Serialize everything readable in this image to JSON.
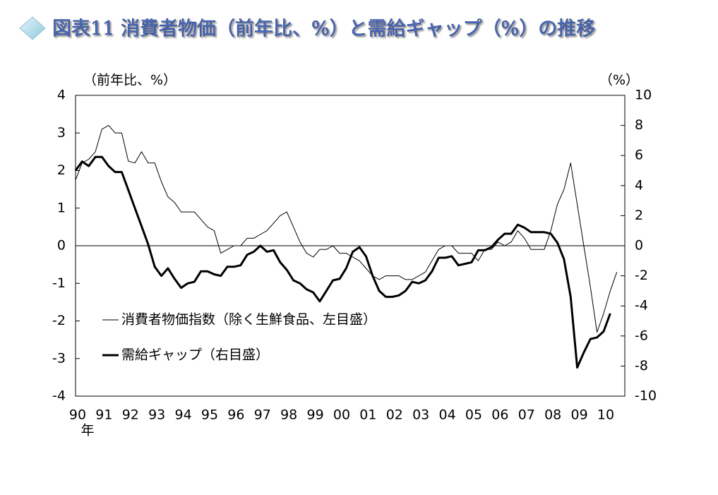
{
  "chart_data": {
    "type": "line",
    "title": "図表11 消費者物価（前年比、%）と需給ギャップ（%）の推移",
    "y_label": "（前年比、%）",
    "y2_label": "（%）",
    "x_annotation": "年",
    "categories": [
      "90",
      null,
      null,
      null,
      "91",
      null,
      null,
      null,
      "92",
      null,
      null,
      null,
      "93",
      null,
      null,
      null,
      "94",
      null,
      null,
      null,
      "95",
      null,
      null,
      null,
      "96",
      null,
      null,
      null,
      "97",
      null,
      null,
      null,
      "98",
      null,
      null,
      null,
      "99",
      null,
      null,
      null,
      "00",
      null,
      null,
      null,
      "01",
      null,
      null,
      null,
      "02",
      null,
      null,
      null,
      "03",
      null,
      null,
      null,
      "04",
      null,
      null,
      null,
      "05",
      null,
      null,
      null,
      "06",
      null,
      null,
      null,
      "07",
      null,
      null,
      null,
      "08",
      null,
      null,
      null,
      "09",
      null,
      null,
      null,
      "10",
      null,
      null
    ],
    "series": [
      {
        "name": "消費者物価指数（除く生鮮食品、左目盛）",
        "color": "#000000",
        "width": 1,
        "axis": "y",
        "values": [
          1.75,
          2.2,
          2.3,
          2.5,
          3.1,
          3.2,
          3.0,
          3.0,
          2.25,
          2.2,
          2.5,
          2.2,
          2.2,
          1.7,
          1.3,
          1.15,
          0.9,
          0.9,
          0.9,
          0.7,
          0.5,
          0.4,
          -0.2,
          -0.1,
          0,
          0,
          0.2,
          0.2,
          0.3,
          0.4,
          0.6,
          0.8,
          0.9,
          0.5,
          0.1,
          -0.2,
          -0.3,
          -0.1,
          -0.1,
          0,
          -0.2,
          -0.2,
          -0.3,
          -0.4,
          -0.6,
          -0.8,
          -0.9,
          -0.8,
          -0.8,
          -0.8,
          -0.9,
          -0.9,
          -0.8,
          -0.7,
          -0.4,
          -0.1,
          0,
          0,
          -0.2,
          -0.2,
          -0.2,
          -0.4,
          -0.1,
          -0.1,
          0.1,
          0,
          0.1,
          0.4,
          0.2,
          -0.1,
          -0.1,
          -0.1,
          0.4,
          1.1,
          1.5,
          2.2,
          1.1,
          0,
          -1.1,
          -2.3,
          -1.8,
          -1.2,
          -0.7
        ]
      },
      {
        "name": "需給ギャップ（右目盛）",
        "color": "#000000",
        "width": 3,
        "axis": "y2",
        "values": [
          5.0,
          5.6,
          5.3,
          5.9,
          5.9,
          5.3,
          4.9,
          4.9,
          3.7,
          2.5,
          1.3,
          0.1,
          -1.4,
          -2.0,
          -1.5,
          -2.2,
          -2.8,
          -2.5,
          -2.4,
          -1.7,
          -1.7,
          -1.9,
          -2.0,
          -1.4,
          -1.4,
          -1.3,
          -0.6,
          -0.4,
          0,
          -0.4,
          -0.3,
          -1.1,
          -1.6,
          -2.3,
          -2.5,
          -2.9,
          -3.1,
          -3.7,
          -3.0,
          -2.3,
          -2.2,
          -1.5,
          -0.4,
          -0.1,
          -0.7,
          -2.0,
          -3.0,
          -3.4,
          -3.4,
          -3.3,
          -3.0,
          -2.4,
          -2.5,
          -2.3,
          -1.7,
          -0.8,
          -0.8,
          -0.7,
          -1.3,
          -1.2,
          -1.1,
          -0.3,
          -0.3,
          -0.1,
          0.4,
          0.8,
          0.8,
          1.4,
          1.2,
          0.9,
          0.9,
          0.9,
          0.8,
          0.2,
          -0.9,
          -3.4,
          -8.1,
          -7.1,
          -6.2,
          -6.1,
          -5.7,
          -4.5,
          null
        ]
      }
    ],
    "ylim": [
      -4,
      4
    ],
    "yticks": [
      -4,
      -3,
      -2,
      -1,
      0,
      1,
      2,
      3,
      4
    ],
    "y2lim": [
      -10,
      10
    ],
    "y2ticks": [
      -10,
      -8,
      -6,
      -4,
      -2,
      0,
      2,
      4,
      6,
      8,
      10
    ]
  }
}
